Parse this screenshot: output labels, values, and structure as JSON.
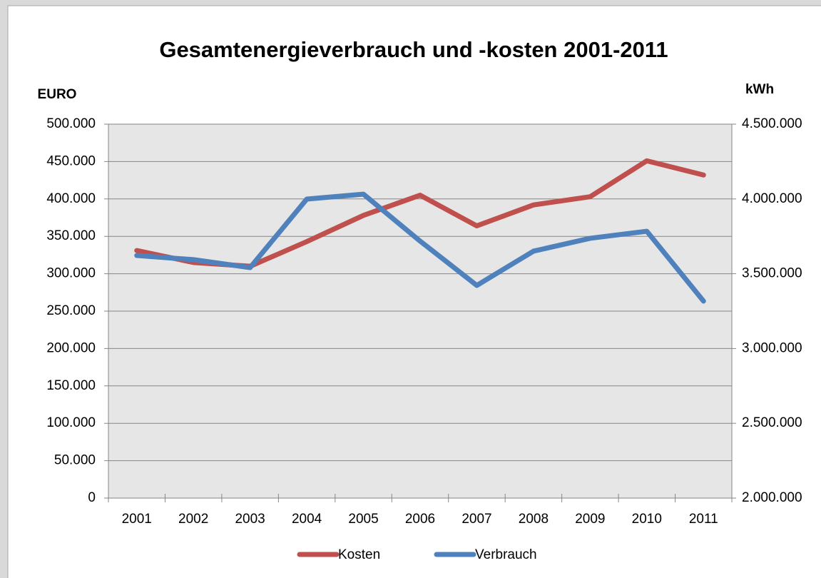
{
  "chart_data": {
    "type": "line",
    "title": "Gesamtenergieverbrauch und -kosten 2001-2011",
    "ylabel": "EURO",
    "y2label": "kWh",
    "categories": [
      "2001",
      "2002",
      "2003",
      "2004",
      "2005",
      "2006",
      "2007",
      "2008",
      "2009",
      "2010",
      "2011"
    ],
    "series": [
      {
        "name": "Kosten",
        "color": "#c0504d",
        "values": [
          331000,
          315000,
          310000,
          343000,
          378000,
          405000,
          364000,
          392000,
          403000,
          451000,
          432000
        ]
      },
      {
        "name": "Verbrauch",
        "color": "#4f81bd",
        "axis": "y2",
        "values": [
          3622000,
          3594000,
          3541000,
          3999000,
          4032000,
          3718000,
          3422000,
          3651000,
          3737000,
          3784000,
          3317000
        ]
      }
    ],
    "ylim": [
      0,
      500000
    ],
    "yticks": [
      0,
      {
        "value": 50000,
        "label": "50.000"
      },
      {
        "value": 100000,
        "label": "100.000"
      },
      {
        "value": 150000,
        "label": "150.000"
      },
      {
        "value": 200000,
        "label": "200.000"
      },
      {
        "value": 250000,
        "label": "250.000"
      },
      {
        "value": 300000,
        "label": "300.000"
      },
      {
        "value": 350000,
        "label": "350.000"
      },
      {
        "value": 400000,
        "label": "400.000"
      },
      {
        "value": 450000,
        "label": "450.000"
      },
      {
        "value": 500000,
        "label": "500.000"
      }
    ],
    "y2lim": [
      2000000,
      4500000
    ],
    "y2ticks": [
      {
        "value": 2000000,
        "label": "2.000.000"
      },
      {
        "value": 2500000,
        "label": "2.500.000"
      },
      {
        "value": 3000000,
        "label": "3.000.000"
      },
      {
        "value": 3500000,
        "label": "3.500.000"
      },
      {
        "value": 4000000,
        "label": "4.000.000"
      },
      {
        "value": 4500000,
        "label": "4.500.000"
      }
    ],
    "grid": true,
    "legend": "bottom"
  }
}
